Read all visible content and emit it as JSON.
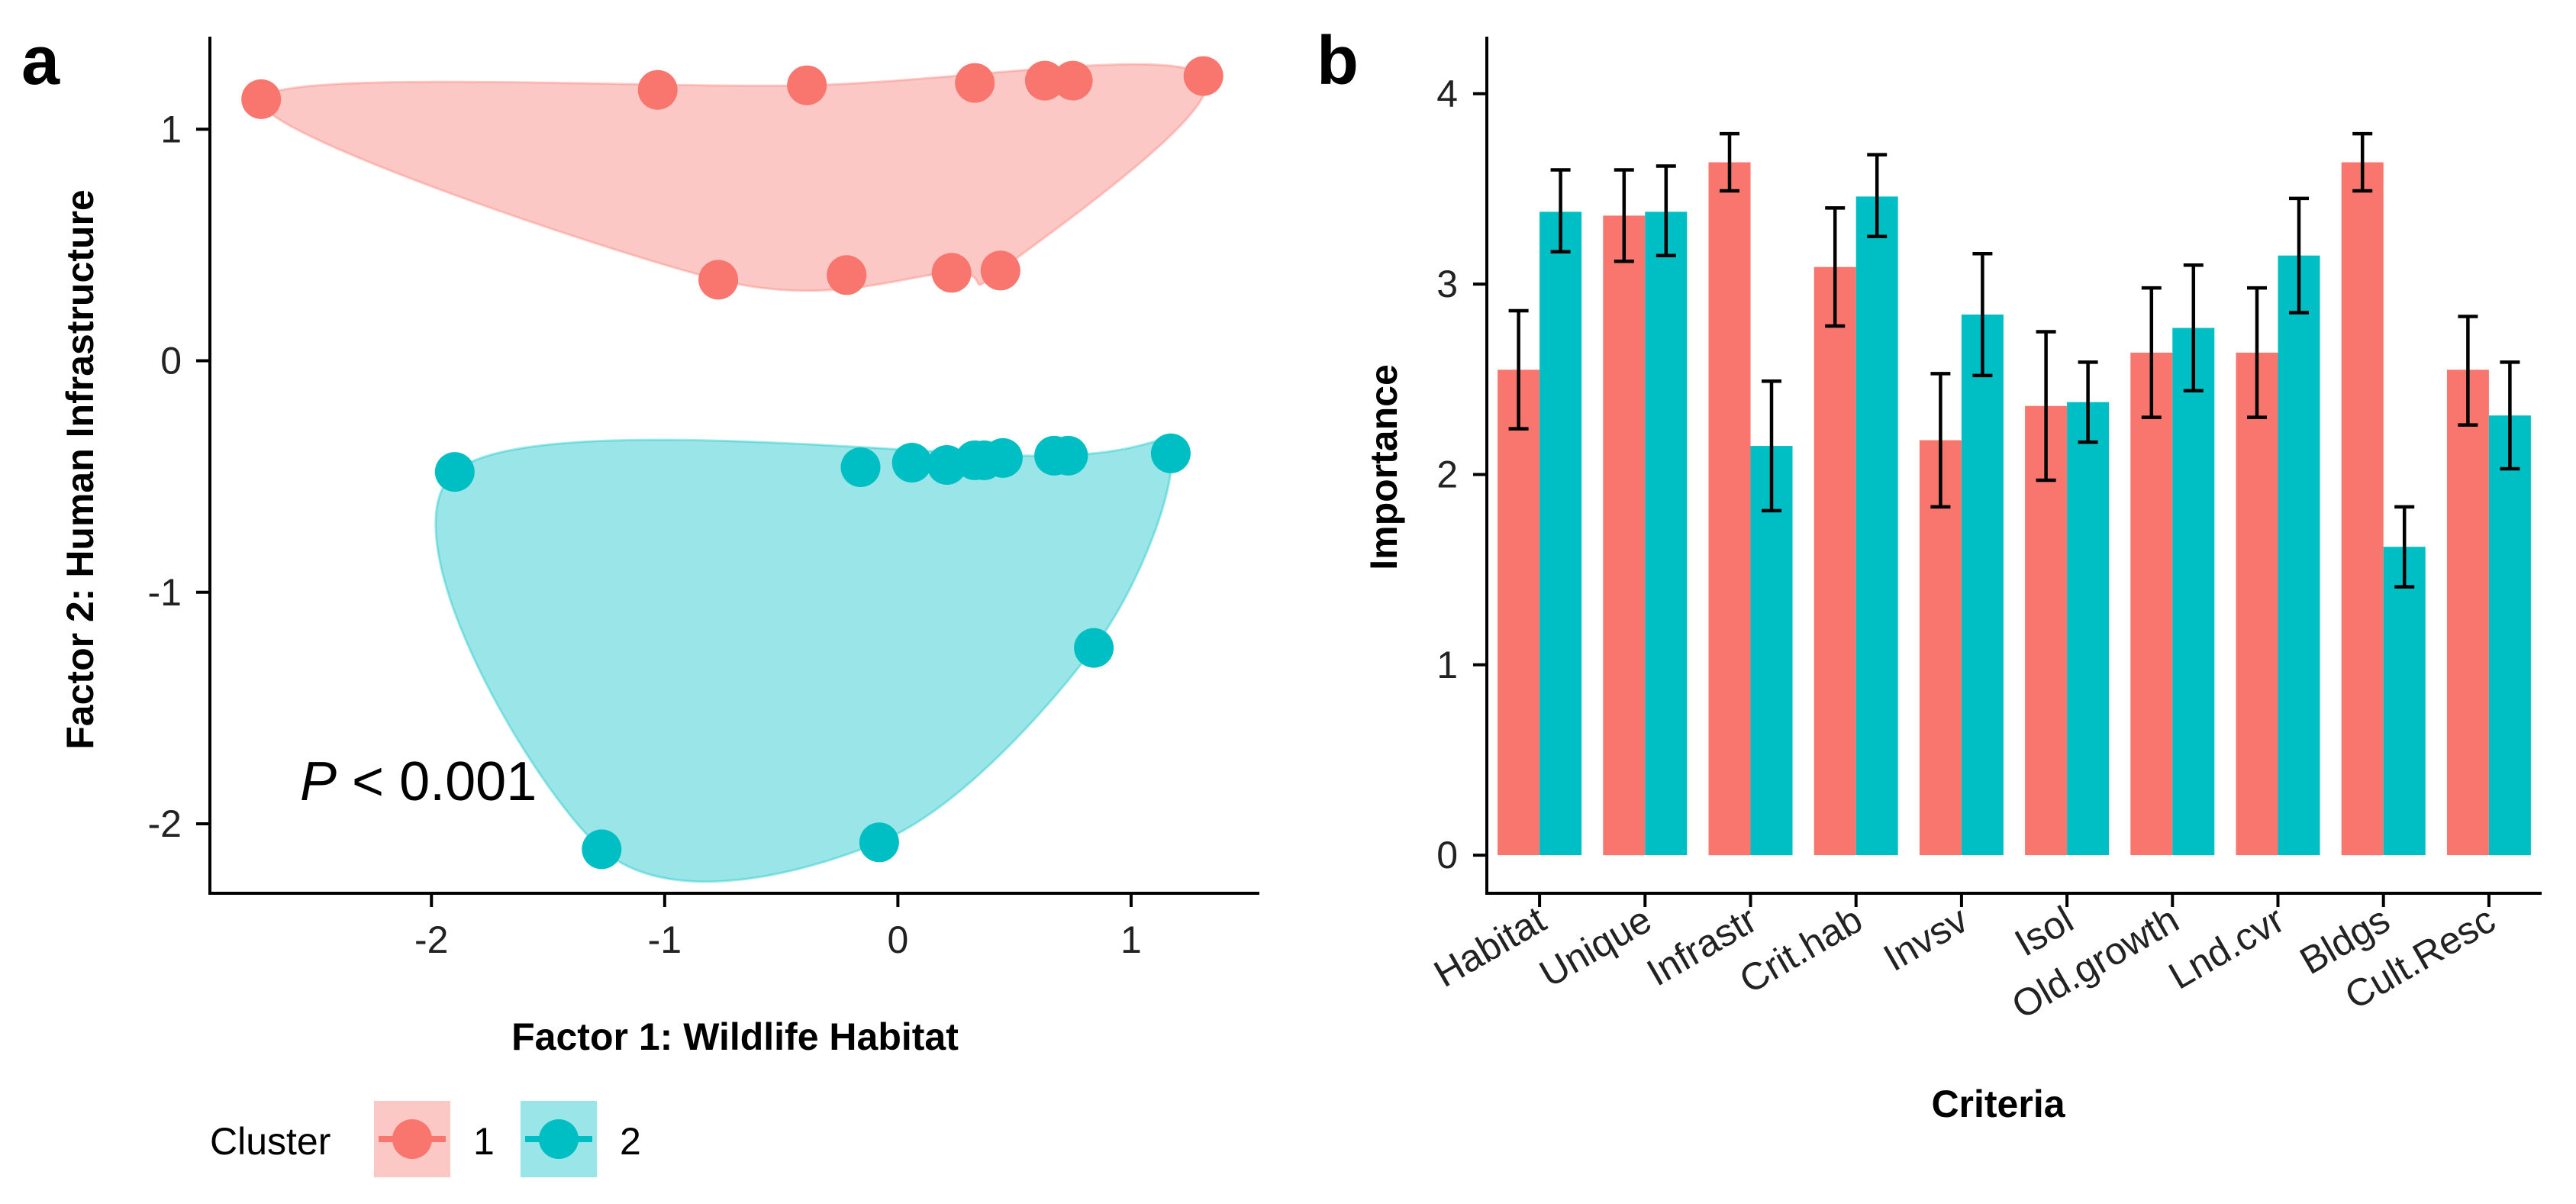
{
  "chart_data": [
    {
      "panel": "a",
      "type": "scatter",
      "xlabel": "Factor 1: Wildlife Habitat",
      "ylabel": "Factor 2: Human Infrastructure",
      "xlim": [
        -2.95,
        1.55
      ],
      "ylim": [
        -2.3,
        1.4
      ],
      "xticks": [
        -2,
        -1,
        0,
        1
      ],
      "yticks": [
        -2,
        -1,
        0,
        1
      ],
      "xtick_labels": [
        "-2",
        "-1",
        "0",
        "1"
      ],
      "ytick_labels": [
        "-2",
        "-1",
        "0",
        "1"
      ],
      "annotation": {
        "italic": "P",
        "text": " < 0.001"
      },
      "grid": false,
      "series": [
        {
          "name": "1",
          "color": "#F8766D",
          "hull_fill": "#F8766D",
          "points": [
            {
              "x": -2.73,
              "y": 1.13
            },
            {
              "x": -1.03,
              "y": 1.17
            },
            {
              "x": -0.39,
              "y": 1.19
            },
            {
              "x": 0.33,
              "y": 1.2
            },
            {
              "x": 0.63,
              "y": 1.21
            },
            {
              "x": 0.75,
              "y": 1.21
            },
            {
              "x": 1.31,
              "y": 1.23
            },
            {
              "x": -0.77,
              "y": 0.35
            },
            {
              "x": -0.22,
              "y": 0.37
            },
            {
              "x": 0.23,
              "y": 0.38
            },
            {
              "x": 0.44,
              "y": 0.39
            }
          ]
        },
        {
          "name": "2",
          "color": "#00BFC4",
          "hull_fill": "#00BFC4",
          "points": [
            {
              "x": -1.9,
              "y": -0.48
            },
            {
              "x": -0.16,
              "y": -0.46
            },
            {
              "x": 0.06,
              "y": -0.44
            },
            {
              "x": 0.21,
              "y": -0.45
            },
            {
              "x": 0.33,
              "y": -0.43
            },
            {
              "x": 0.37,
              "y": -0.43
            },
            {
              "x": 0.45,
              "y": -0.42
            },
            {
              "x": 0.67,
              "y": -0.41
            },
            {
              "x": 0.73,
              "y": -0.41
            },
            {
              "x": 1.17,
              "y": -0.4
            },
            {
              "x": 0.84,
              "y": -1.24
            },
            {
              "x": -0.08,
              "y": -2.08
            },
            {
              "x": -1.27,
              "y": -2.11
            }
          ]
        }
      ],
      "legend": {
        "title": "Cluster",
        "entries": [
          "1",
          "2"
        ],
        "placement": "bottom"
      }
    },
    {
      "panel": "b",
      "type": "bar",
      "xlabel": "Criteria",
      "ylabel": "Importance",
      "ylim": [
        -0.2,
        4.3
      ],
      "yticks": [
        0,
        1,
        2,
        3,
        4
      ],
      "ytick_labels": [
        "0",
        "1",
        "2",
        "3",
        "4"
      ],
      "grid": false,
      "categories": [
        "Habitat",
        "Unique",
        "Infrastr",
        "Crit.hab",
        "Invsv",
        "Isol",
        "Old.growth",
        "Lnd.cvr",
        "Bldgs",
        "Cult.Resc"
      ],
      "series": [
        {
          "name": "1",
          "color": "#F8766D",
          "values": [
            2.55,
            3.36,
            3.64,
            3.09,
            2.18,
            2.36,
            2.64,
            2.64,
            3.64,
            2.55
          ],
          "err_low": [
            2.24,
            3.12,
            3.49,
            2.78,
            1.83,
            1.97,
            2.3,
            2.3,
            3.49,
            2.26
          ],
          "err_high": [
            2.86,
            3.6,
            3.79,
            3.4,
            2.53,
            2.75,
            2.98,
            2.98,
            3.79,
            2.83
          ]
        },
        {
          "name": "2",
          "color": "#00BFC4",
          "values": [
            3.38,
            3.38,
            2.15,
            3.46,
            2.84,
            2.38,
            2.77,
            3.15,
            1.62,
            2.31
          ],
          "err_low": [
            3.17,
            3.15,
            1.81,
            3.25,
            2.52,
            2.17,
            2.44,
            2.85,
            1.41,
            2.03
          ],
          "err_high": [
            3.6,
            3.62,
            2.49,
            3.68,
            3.16,
            2.59,
            3.1,
            3.45,
            1.83,
            2.59
          ]
        }
      ]
    }
  ]
}
